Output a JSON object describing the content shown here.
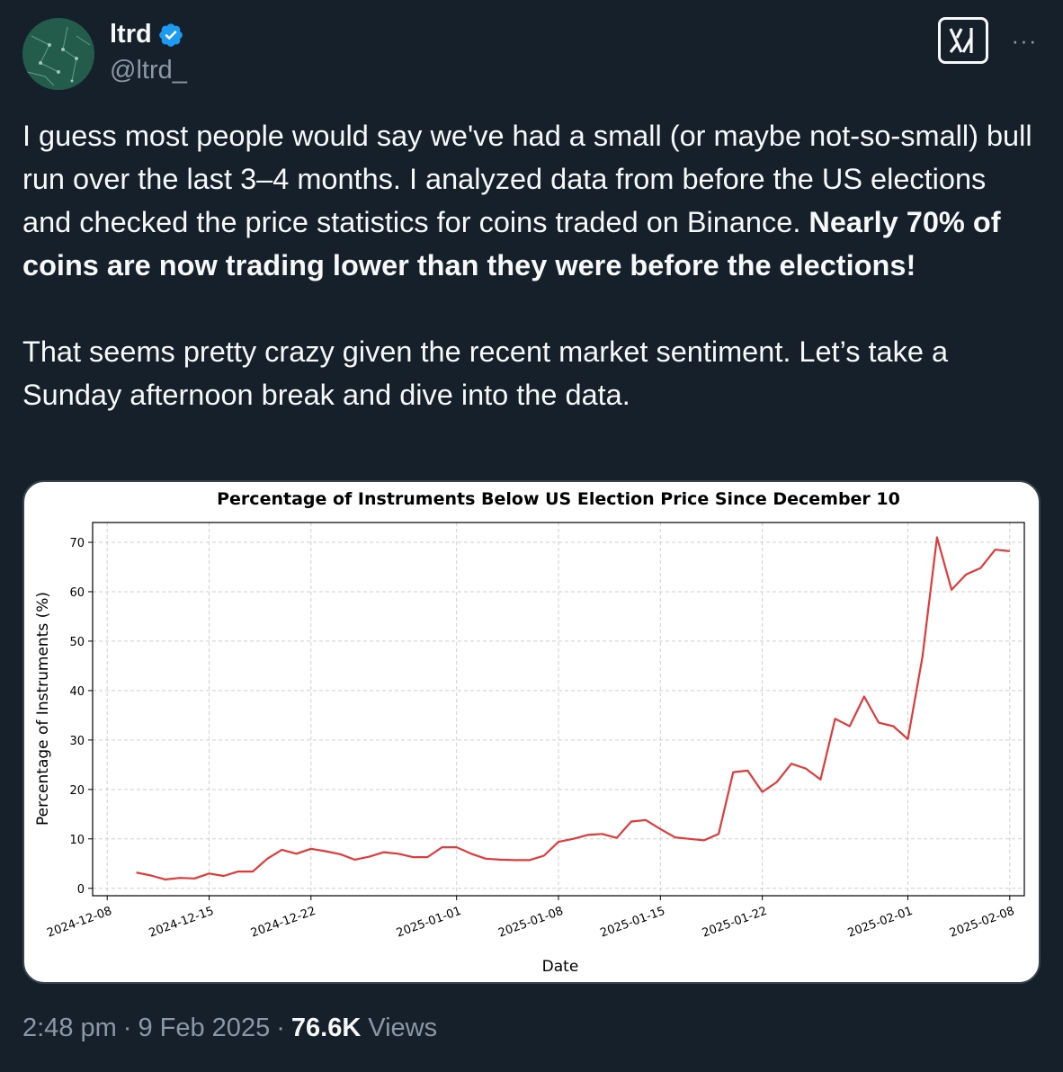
{
  "author": {
    "name": "ltrd",
    "handle": "@ltrd_",
    "verified": true
  },
  "actions": {
    "grok_icon": "grok-icon",
    "more_label": "···"
  },
  "tweet": {
    "p1_normal": "I guess most people would say we've had a small (or maybe not-so-small) bull run over the last 3–4 months. I analyzed data from before the US elections and checked the price statistics for coins traded on Binance. ",
    "p1_bold": "Nearly 70% of coins are now trading lower than they were before the elections!",
    "p2": "That seems pretty crazy given the recent market sentiment. Let’s take a Sunday afternoon break and dive into the data."
  },
  "chart_data": {
    "type": "line",
    "title": "Percentage of Instruments Below US Election Price Since December 10",
    "xlabel": "Date",
    "ylabel": "Percentage of Instruments (%)",
    "x_ticks": [
      "2024-12-08",
      "2024-12-15",
      "2024-12-22",
      "2025-01-01",
      "2025-01-08",
      "2025-01-15",
      "2025-01-22",
      "2025-02-01",
      "2025-02-08"
    ],
    "y_ticks": [
      0,
      10,
      20,
      30,
      40,
      50,
      60,
      70
    ],
    "ylim": [
      -1.5,
      74
    ],
    "xlim": [
      "2024-12-07",
      "2025-02-09"
    ],
    "grid": true,
    "line_color": "#e03b3b",
    "series": [
      {
        "x": [
          "2024-12-10",
          "2024-12-11",
          "2024-12-12",
          "2024-12-13",
          "2024-12-14",
          "2024-12-15",
          "2024-12-16",
          "2024-12-17",
          "2024-12-18",
          "2024-12-19",
          "2024-12-20",
          "2024-12-21",
          "2024-12-22",
          "2024-12-23",
          "2024-12-24",
          "2024-12-25",
          "2024-12-26",
          "2024-12-27",
          "2024-12-28",
          "2024-12-29",
          "2024-12-30",
          "2024-12-31",
          "2025-01-01",
          "2025-01-02",
          "2025-01-03",
          "2025-01-04",
          "2025-01-05",
          "2025-01-06",
          "2025-01-07",
          "2025-01-08",
          "2025-01-09",
          "2025-01-10",
          "2025-01-11",
          "2025-01-12",
          "2025-01-13",
          "2025-01-14",
          "2025-01-15",
          "2025-01-16",
          "2025-01-17",
          "2025-01-18",
          "2025-01-19",
          "2025-01-20",
          "2025-01-21",
          "2025-01-22",
          "2025-01-23",
          "2025-01-24",
          "2025-01-25",
          "2025-01-26",
          "2025-01-27",
          "2025-01-28",
          "2025-01-29",
          "2025-01-30",
          "2025-01-31",
          "2025-02-01",
          "2025-02-02",
          "2025-02-03",
          "2025-02-04",
          "2025-02-05",
          "2025-02-06",
          "2025-02-07",
          "2025-02-08"
        ],
        "values": [
          3.2,
          2.6,
          1.8,
          2.1,
          2.0,
          3.0,
          2.5,
          3.4,
          3.4,
          6.0,
          7.8,
          7.0,
          8.0,
          7.5,
          6.9,
          5.8,
          6.4,
          7.3,
          7.0,
          6.3,
          6.3,
          8.3,
          8.3,
          7.0,
          6.0,
          5.8,
          5.7,
          5.7,
          6.6,
          9.4,
          10.0,
          10.8,
          11.0,
          10.2,
          13.5,
          13.8,
          12.0,
          10.3,
          10.0,
          9.7,
          11.0,
          23.5,
          23.8,
          19.5,
          21.5,
          25.2,
          24.2,
          22.0,
          34.3,
          32.8,
          38.8,
          33.5,
          32.8,
          30.2,
          46.8,
          71.0,
          60.4,
          63.5,
          64.8,
          68.5,
          68.2
        ]
      }
    ]
  },
  "footer": {
    "time": "2:48 pm",
    "dot1": "·",
    "date": "9 Feb 2025",
    "dot2": "·",
    "views_count": "76.6K",
    "views_label": "Views"
  }
}
